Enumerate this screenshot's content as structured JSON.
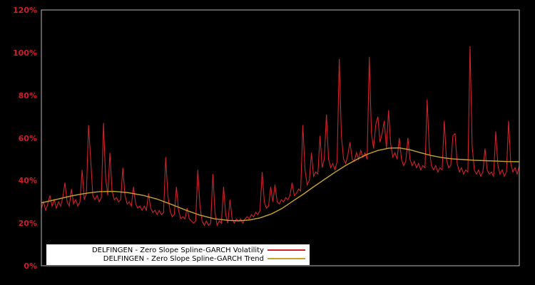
{
  "window": {
    "background": "#000000"
  },
  "plot": {
    "border_color": "#b9b9b9",
    "background": "#000000"
  },
  "y_axis": {
    "tick_color": "#cd1f2a",
    "ticks": [
      {
        "label": "0%",
        "value": 0
      },
      {
        "label": "20%",
        "value": 20
      },
      {
        "label": "40%",
        "value": 40
      },
      {
        "label": "60%",
        "value": 60
      },
      {
        "label": "80%",
        "value": 80
      },
      {
        "label": "100%",
        "value": 100
      },
      {
        "label": "120%",
        "value": 120
      }
    ]
  },
  "legend": {
    "background": "#ffffff",
    "position": "lower left"
  },
  "chart_data": {
    "type": "line",
    "title": "",
    "xlabel": "",
    "ylabel": "",
    "ylim": [
      0,
      120
    ],
    "grid": false,
    "legend_position": "lower left",
    "x_axis_labels_visible": false,
    "series": [
      {
        "name": "DELFINGEN - Zero Slope Spline-GARCH Volatility",
        "color": "#d0222a",
        "unit": "%",
        "values": [
          27,
          30,
          26,
          29,
          33,
          28,
          31,
          27,
          30,
          28,
          32,
          39,
          30,
          28,
          36,
          29,
          31,
          28,
          30,
          45,
          31,
          34,
          66,
          50,
          33,
          31,
          33,
          30,
          32,
          67,
          41,
          33,
          53,
          35,
          31,
          32,
          30,
          31,
          46,
          33,
          29,
          30,
          28,
          37,
          29,
          27,
          28,
          26,
          28,
          26,
          34,
          27,
          25,
          26,
          24,
          26,
          24,
          25,
          51,
          33,
          26,
          23,
          24,
          37,
          26,
          22,
          23,
          22,
          27,
          22,
          21,
          20,
          21,
          45,
          28,
          21,
          19,
          21,
          19,
          20,
          43,
          25,
          19,
          21,
          20,
          37,
          24,
          20,
          31,
          22,
          20,
          22,
          21,
          22,
          20,
          22,
          23,
          22,
          24,
          23,
          25,
          24,
          26,
          44,
          30,
          27,
          28,
          37,
          30,
          38,
          30,
          29,
          31,
          30,
          32,
          31,
          33,
          39,
          33,
          34,
          36,
          35,
          66,
          45,
          38,
          40,
          53,
          42,
          44,
          43,
          61,
          46,
          50,
          71,
          50,
          46,
          48,
          45,
          49,
          97,
          61,
          50,
          48,
          52,
          58,
          50,
          49,
          53,
          50,
          54,
          51,
          53,
          50,
          98,
          62,
          55,
          66,
          70,
          58,
          62,
          68,
          55,
          73,
          57,
          51,
          53,
          50,
          60,
          50,
          47,
          49,
          60,
          50,
          47,
          49,
          46,
          48,
          45,
          47,
          46,
          78,
          55,
          47,
          45,
          47,
          44,
          46,
          45,
          68,
          50,
          46,
          47,
          61,
          62,
          48,
          44,
          46,
          43,
          45,
          44,
          103,
          56,
          45,
          43,
          45,
          42,
          44,
          55,
          45,
          43,
          44,
          42,
          63,
          47,
          43,
          45,
          42,
          44,
          68,
          48,
          44,
          46,
          43,
          47
        ]
      },
      {
        "name": "DELFINGEN - Zero Slope Spline-GARCH Trend",
        "color": "#c9a22b",
        "unit": "%",
        "points": [
          [
            0.0,
            29.5
          ],
          [
            0.033,
            31.2
          ],
          [
            0.063,
            32.8
          ],
          [
            0.093,
            34.0
          ],
          [
            0.122,
            34.8
          ],
          [
            0.152,
            34.9
          ],
          [
            0.182,
            34.3
          ],
          [
            0.212,
            33.1
          ],
          [
            0.242,
            31.3
          ],
          [
            0.272,
            28.8
          ],
          [
            0.301,
            26.2
          ],
          [
            0.331,
            23.8
          ],
          [
            0.361,
            22.1
          ],
          [
            0.391,
            21.3
          ],
          [
            0.413,
            21.1
          ],
          [
            0.436,
            21.5
          ],
          [
            0.458,
            22.5
          ],
          [
            0.481,
            24.3
          ],
          [
            0.503,
            26.8
          ],
          [
            0.525,
            30.2
          ],
          [
            0.548,
            33.6
          ],
          [
            0.57,
            37.1
          ],
          [
            0.593,
            40.6
          ],
          [
            0.615,
            44.0
          ],
          [
            0.637,
            47.1
          ],
          [
            0.66,
            49.9
          ],
          [
            0.682,
            52.3
          ],
          [
            0.704,
            54.1
          ],
          [
            0.727,
            55.2
          ],
          [
            0.749,
            55.3
          ],
          [
            0.772,
            54.4
          ],
          [
            0.794,
            53.0
          ],
          [
            0.816,
            51.7
          ],
          [
            0.839,
            50.7
          ],
          [
            0.861,
            50.1
          ],
          [
            0.884,
            49.8
          ],
          [
            0.906,
            49.5
          ],
          [
            0.928,
            49.3
          ],
          [
            0.951,
            49.1
          ],
          [
            0.973,
            48.9
          ],
          [
            1.0,
            48.8
          ]
        ]
      }
    ]
  }
}
